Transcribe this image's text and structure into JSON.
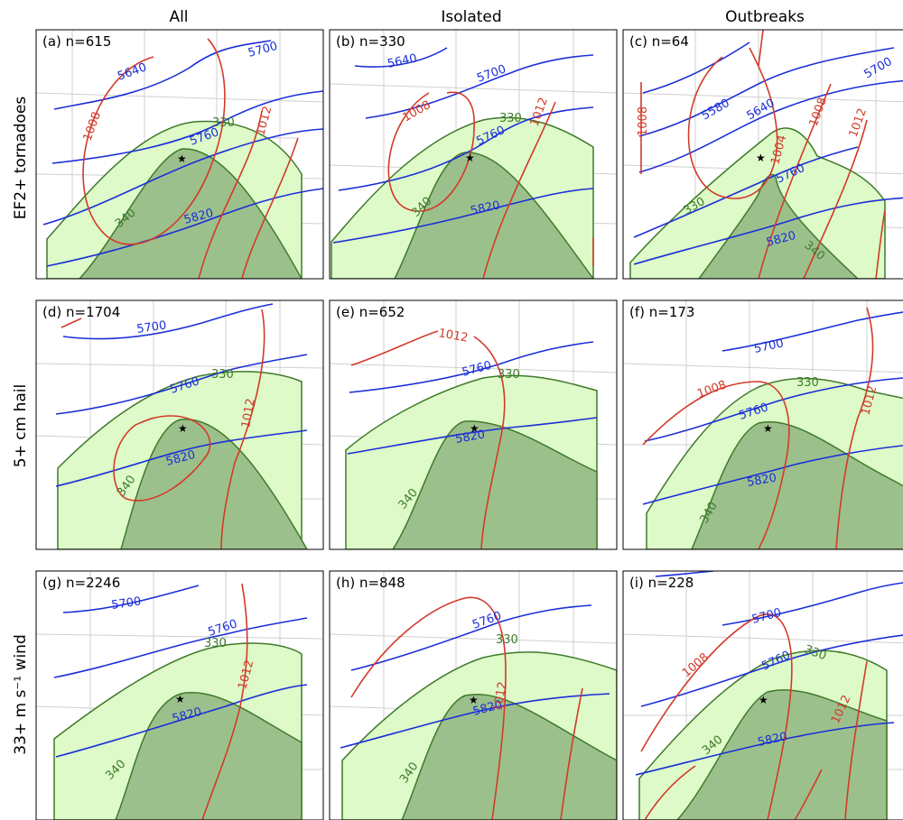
{
  "chart_data": {
    "type": "composite-map-grid",
    "columns": [
      "All",
      "Isolated",
      "Outbreaks"
    ],
    "rows": [
      "EF2+ tornadoes",
      "5+ cm hail",
      "33+ m s⁻¹ wind"
    ],
    "colors": {
      "height_contours": "#1a2ed8",
      "mslp_contours": "#d23a2a",
      "theta_e_330_fill": "#ddfac8",
      "theta_e_340_fill": "#9cc08c",
      "theta_e_edge": "#3f7a2a"
    },
    "panels": [
      {
        "label": "(a) n=615",
        "n": 615,
        "height_labels": [
          "5640",
          "5700",
          "5760",
          "5820"
        ],
        "mslp_labels": [
          "1008",
          "1012"
        ],
        "theta_e_labels": [
          "330",
          "340"
        ]
      },
      {
        "label": "(b) n=330",
        "n": 330,
        "height_labels": [
          "5640",
          "5700",
          "5760",
          "5820"
        ],
        "mslp_labels": [
          "1008",
          "1012"
        ],
        "theta_e_labels": [
          "330",
          "340"
        ]
      },
      {
        "label": "(c) n=64",
        "n": 64,
        "height_labels": [
          "5580",
          "5640",
          "5700",
          "5760",
          "5820"
        ],
        "mslp_labels": [
          "1008",
          "1008",
          "1004",
          "1012"
        ],
        "theta_e_labels": [
          "330",
          "340"
        ]
      },
      {
        "label": "(d) n=1704",
        "n": 1704,
        "height_labels": [
          "5700",
          "5760",
          "5820"
        ],
        "mslp_labels": [
          "1012"
        ],
        "theta_e_labels": [
          "330",
          "340"
        ]
      },
      {
        "label": "(e) n=652",
        "n": 652,
        "height_labels": [
          "5760",
          "5820"
        ],
        "mslp_labels": [
          "1012"
        ],
        "theta_e_labels": [
          "330",
          "340"
        ]
      },
      {
        "label": "(f) n=173",
        "n": 173,
        "height_labels": [
          "5700",
          "5760",
          "5820"
        ],
        "mslp_labels": [
          "1008",
          "1012"
        ],
        "theta_e_labels": [
          "330",
          "340"
        ]
      },
      {
        "label": "(g) n=2246",
        "n": 2246,
        "height_labels": [
          "5700",
          "5760",
          "5820"
        ],
        "mslp_labels": [
          "1012"
        ],
        "theta_e_labels": [
          "330",
          "340"
        ]
      },
      {
        "label": "(h) n=848",
        "n": 848,
        "height_labels": [
          "5760",
          "5820"
        ],
        "mslp_labels": [
          "1012"
        ],
        "theta_e_labels": [
          "330",
          "340"
        ]
      },
      {
        "label": "(i) n=228",
        "n": 228,
        "height_labels": [
          "5700",
          "5760",
          "5820"
        ],
        "mslp_labels": [
          "1008",
          "1012"
        ],
        "theta_e_labels": [
          "330",
          "340"
        ]
      }
    ]
  }
}
